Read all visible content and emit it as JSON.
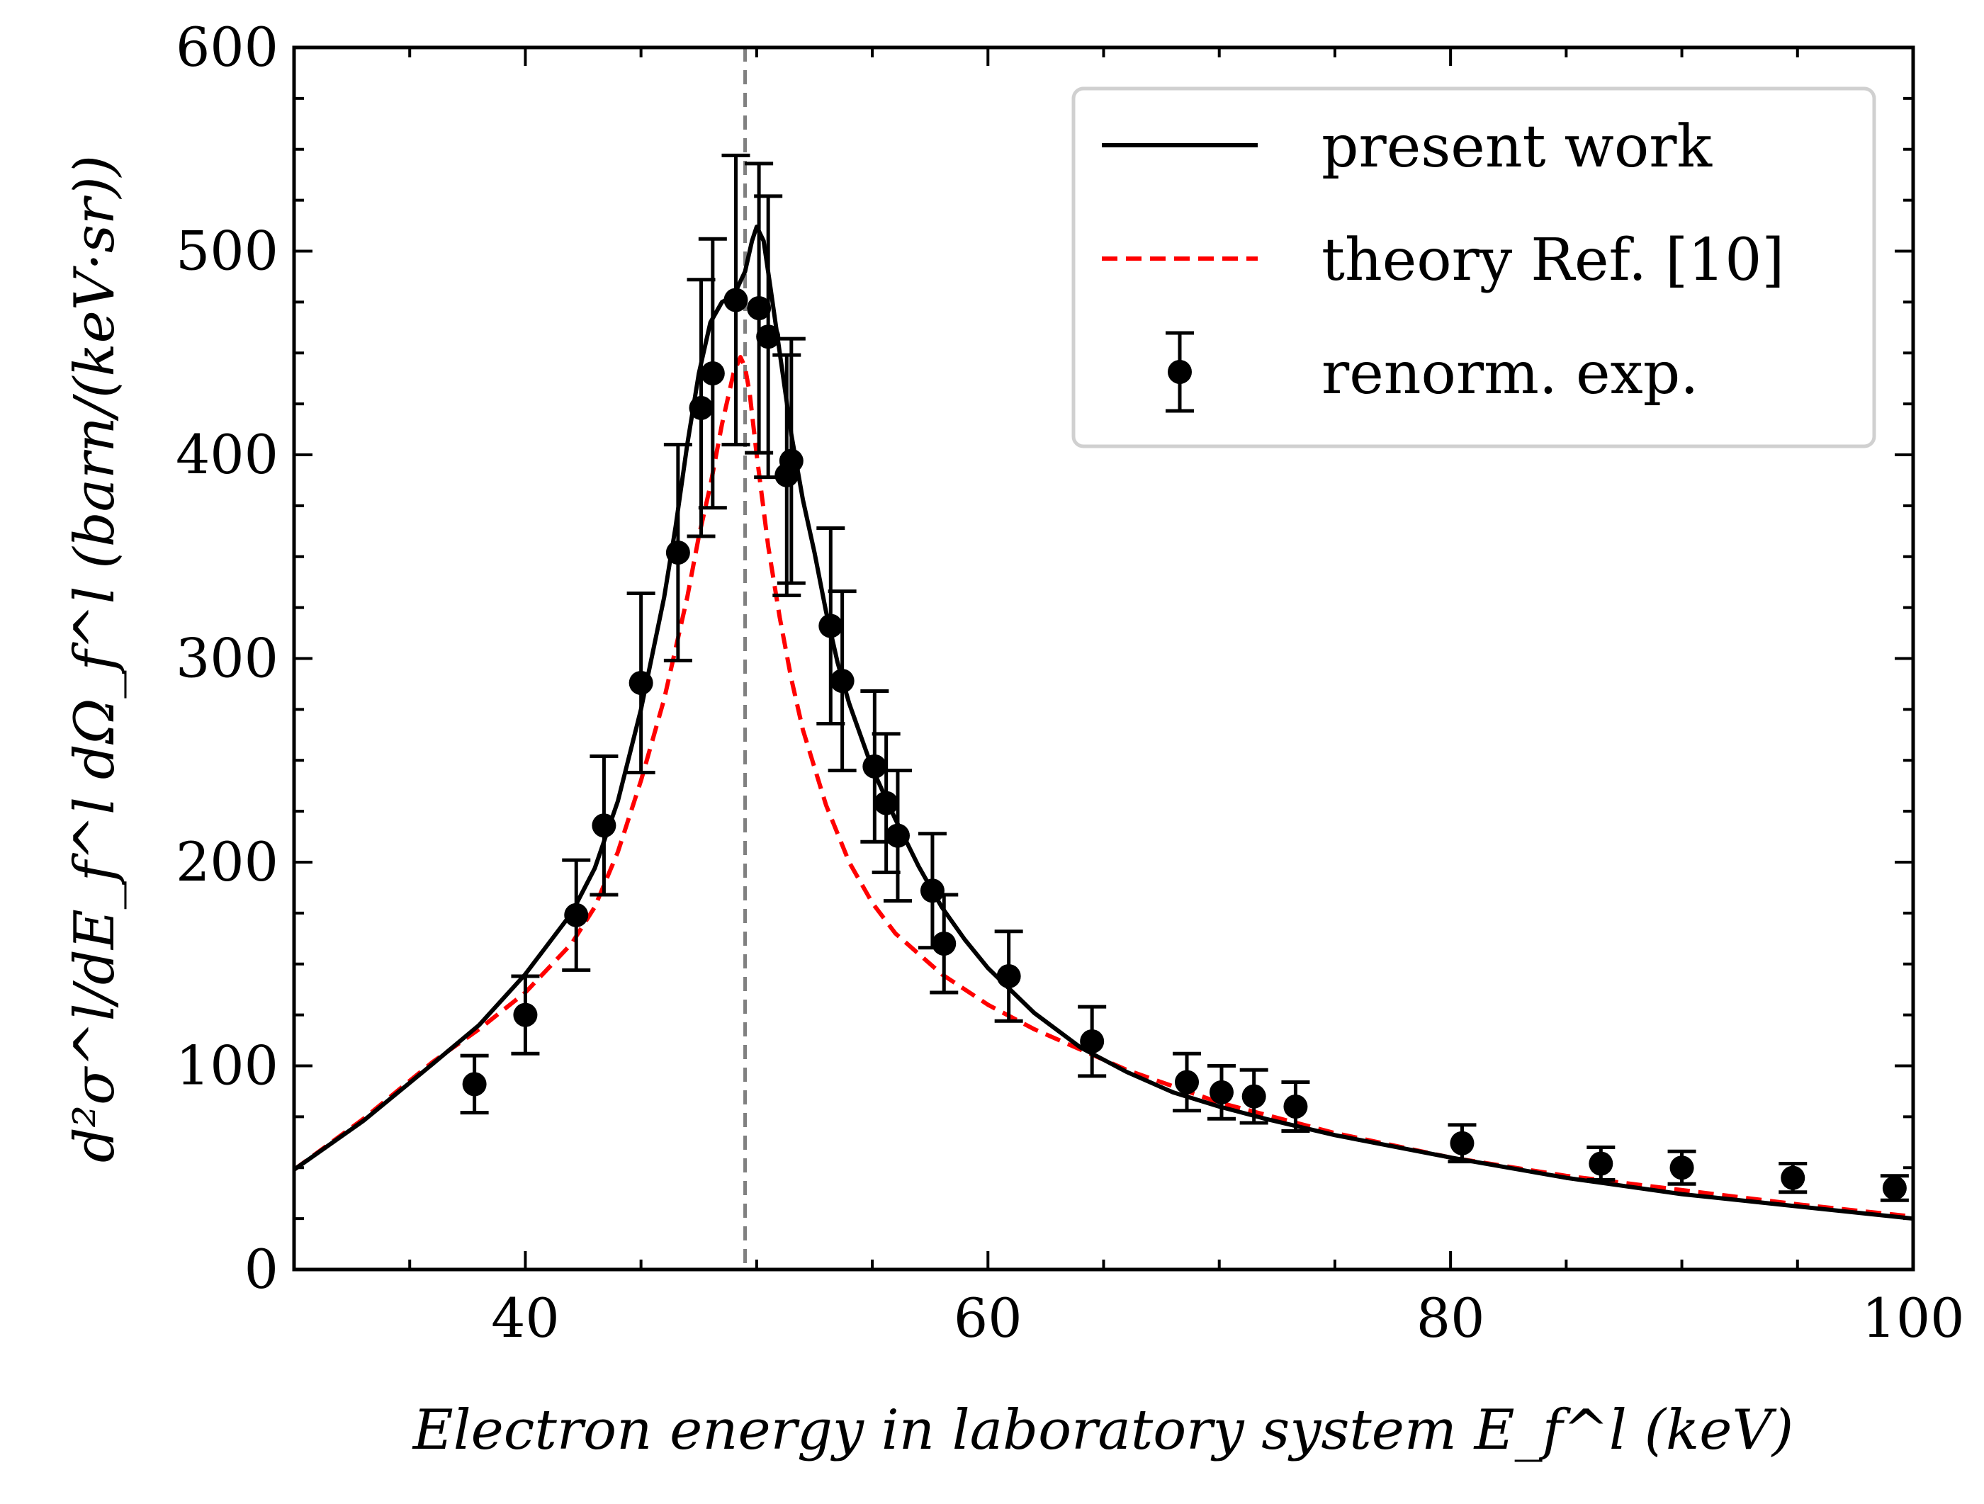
{
  "chart_data": {
    "type": "line",
    "xlabel": "Electron energy in laboratory system E_f^l (keV)",
    "ylabel": "d²σ^l/dE_f^l dΩ_f^l (barn/(keV·sr))",
    "xlim": [
      30,
      100
    ],
    "ylim": [
      0,
      600
    ],
    "x_ticks": [
      40,
      60,
      80,
      100
    ],
    "y_ticks": [
      0,
      100,
      200,
      300,
      400,
      500,
      600
    ],
    "x_tick_labels": [
      "40",
      "60",
      "80",
      "100"
    ],
    "y_tick_labels": [
      "0",
      "100",
      "200",
      "300",
      "400",
      "500",
      "600"
    ],
    "vline_x": 49.5,
    "legend_position": "top-right",
    "legend": {
      "present_work": "present work",
      "theory": "theory Ref. [10]",
      "experiment": "renorm. exp."
    },
    "colors": {
      "present_work": "#000000",
      "theory": "#ff0000",
      "experiment": "#000000",
      "vline": "#808080"
    },
    "series": [
      {
        "name": "present work",
        "style": "solid",
        "x": [
          30,
          33,
          36,
          38,
          40,
          42,
          43,
          44,
          45,
          46,
          46.5,
          47,
          47.5,
          48,
          48.5,
          49,
          49.5,
          49.8,
          50,
          50.3,
          50.6,
          51,
          51.5,
          52,
          52.5,
          53,
          53.5,
          54,
          55,
          56,
          57,
          58,
          59,
          60,
          62,
          64,
          66,
          68,
          70,
          72,
          75,
          80,
          85,
          90,
          95,
          100
        ],
        "y": [
          49,
          73,
          101,
          120,
          145,
          175,
          197,
          230,
          275,
          330,
          365,
          405,
          440,
          465,
          475,
          478,
          490,
          505,
          512,
          505,
          482,
          450,
          410,
          378,
          352,
          323,
          298,
          278,
          246,
          221,
          198,
          178,
          162,
          148,
          126,
          109,
          97,
          87,
          80,
          74,
          66,
          55,
          45,
          37,
          31,
          25
        ]
      },
      {
        "name": "theory Ref. [10]",
        "style": "dashed",
        "x": [
          30,
          33,
          36,
          38,
          40,
          42,
          43,
          44,
          45,
          46,
          46.5,
          47,
          47.5,
          48,
          48.5,
          49,
          49.3,
          49.5,
          49.7,
          50,
          50.5,
          51,
          51.5,
          52,
          53,
          54,
          55,
          56,
          58,
          60,
          62,
          64,
          66,
          68,
          70,
          75,
          80,
          85,
          90,
          95,
          100
        ],
        "y": [
          49,
          74,
          102,
          118,
          136,
          160,
          178,
          205,
          240,
          280,
          305,
          330,
          360,
          385,
          415,
          440,
          448,
          443,
          430,
          400,
          355,
          320,
          290,
          265,
          228,
          200,
          180,
          165,
          145,
          130,
          118,
          108,
          98,
          90,
          82,
          67,
          55,
          46,
          39,
          32,
          26
        ]
      },
      {
        "name": "renorm. exp.",
        "style": "markers",
        "x": [
          37.8,
          40,
          42.2,
          43.4,
          45,
          46.6,
          47.6,
          48.1,
          49.1,
          50.1,
          50.5,
          51.3,
          51.5,
          53.2,
          53.7,
          55.1,
          55.6,
          56.1,
          57.6,
          58.1,
          60.9,
          64.5,
          68.6,
          70.1,
          71.5,
          73.3,
          80.5,
          86.5,
          90,
          94.8,
          99.2
        ],
        "y": [
          91,
          125,
          174,
          218,
          288,
          352,
          423,
          440,
          476,
          472,
          458,
          390,
          397,
          316,
          289,
          247,
          229,
          213,
          186,
          160,
          144,
          112,
          92,
          87,
          85,
          80,
          62,
          52,
          50,
          45,
          40
        ],
        "err_low": [
          14,
          19,
          27,
          34,
          44,
          53,
          63,
          66,
          71,
          71,
          69,
          59,
          60,
          48,
          44,
          37,
          34,
          32,
          28,
          24,
          22,
          17,
          14,
          13,
          13,
          12,
          9,
          8,
          8,
          7,
          6
        ],
        "err_high": [
          14,
          19,
          27,
          34,
          44,
          53,
          63,
          66,
          71,
          71,
          69,
          59,
          60,
          48,
          44,
          37,
          34,
          32,
          28,
          24,
          22,
          17,
          14,
          13,
          13,
          12,
          9,
          8,
          8,
          7,
          6
        ]
      }
    ]
  }
}
